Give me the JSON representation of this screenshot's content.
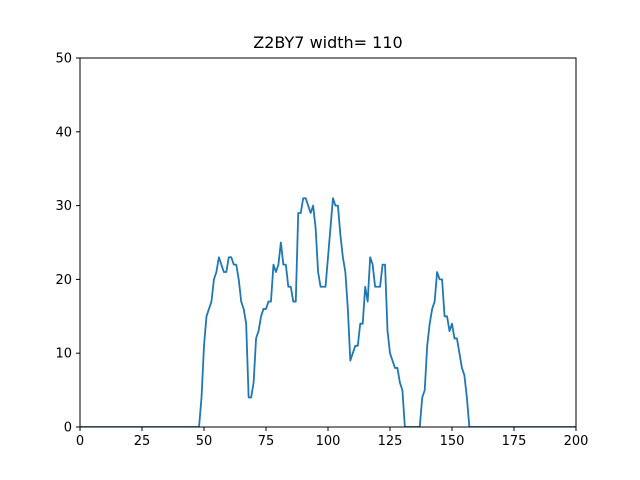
{
  "chart_data": {
    "type": "line",
    "title": "Z2BY7 width= 110",
    "xlabel": "",
    "ylabel": "",
    "xlim": [
      0,
      200
    ],
    "ylim": [
      0,
      50
    ],
    "xticks": [
      0,
      25,
      50,
      75,
      100,
      125,
      150,
      175,
      200
    ],
    "yticks": [
      0,
      10,
      20,
      30,
      40,
      50
    ],
    "grid": false,
    "line_color": "#1f77b4",
    "series": [
      {
        "x": [
          0,
          48,
          49,
          50,
          51,
          52,
          53,
          54,
          55,
          56,
          57,
          58,
          59,
          60,
          61,
          62,
          63,
          64,
          65,
          66,
          67,
          68,
          69,
          70,
          71,
          72,
          73,
          74,
          75,
          76,
          77,
          78,
          79,
          80,
          81,
          82,
          83,
          84,
          85,
          86,
          87,
          88,
          89,
          90,
          91,
          92,
          93,
          94,
          95,
          96,
          97,
          98,
          99,
          100,
          101,
          102,
          103,
          104,
          105,
          106,
          107,
          108,
          109,
          110,
          111,
          112,
          113,
          114,
          115,
          116,
          117,
          118,
          119,
          120,
          121,
          122,
          123,
          124,
          125,
          126,
          127,
          128,
          129,
          130,
          131,
          132,
          133,
          134,
          135,
          136,
          137,
          138,
          139,
          140,
          141,
          142,
          143,
          144,
          145,
          146,
          147,
          148,
          149,
          150,
          151,
          152,
          153,
          154,
          155,
          156,
          157,
          158,
          200
        ],
        "y": [
          0,
          0,
          4,
          11,
          15,
          16,
          17,
          20,
          21,
          23,
          22,
          21,
          21,
          23,
          23,
          22,
          22,
          20,
          17,
          16,
          14,
          4,
          4,
          6,
          12,
          13,
          15,
          16,
          16,
          17,
          17,
          22,
          21,
          22,
          25,
          22,
          22,
          19,
          19,
          17,
          17,
          29,
          29,
          31,
          31,
          30,
          29,
          30,
          27,
          21,
          19,
          19,
          19,
          23,
          27,
          31,
          30,
          30,
          26,
          23,
          21,
          16,
          9,
          10,
          11,
          11,
          14,
          14,
          19,
          17,
          23,
          22,
          19,
          19,
          19,
          22,
          22,
          13,
          10,
          9,
          8,
          8,
          6,
          5,
          0,
          0,
          0,
          0,
          0,
          0,
          0,
          4,
          5,
          11,
          14,
          16,
          17,
          21,
          20,
          20,
          15,
          15,
          13,
          14,
          12,
          12,
          10,
          8,
          7,
          4,
          0,
          0,
          0
        ]
      }
    ]
  }
}
